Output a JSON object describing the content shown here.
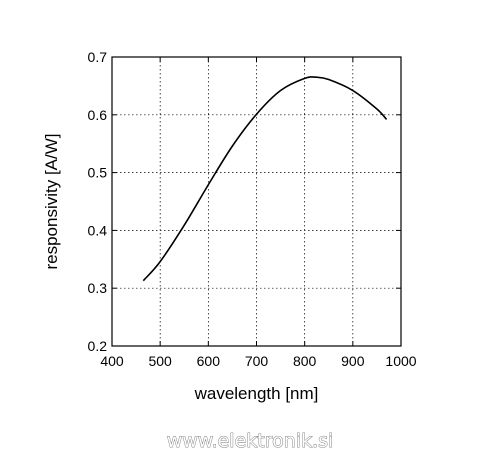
{
  "chart_data": {
    "type": "line",
    "title": "",
    "xlabel": "wavelength [nm]",
    "ylabel": "responsivity [A/W]",
    "xlim": [
      400,
      1000
    ],
    "ylim": [
      0.2,
      0.7
    ],
    "x_ticks": [
      "400",
      "500",
      "600",
      "700",
      "800",
      "900",
      "1000"
    ],
    "y_ticks": [
      "0.2",
      "0.3",
      "0.4",
      "0.5",
      "0.6",
      "0.7"
    ],
    "grid": true,
    "grid_style": "dotted",
    "line_color": "#000000",
    "series": [
      {
        "x": [
          465,
          500,
          550,
          600,
          650,
          700,
          750,
          800,
          825,
          850,
          900,
          950,
          970
        ],
        "values": [
          0.313,
          0.346,
          0.409,
          0.479,
          0.546,
          0.601,
          0.642,
          0.663,
          0.665,
          0.661,
          0.642,
          0.61,
          0.592
        ]
      }
    ]
  },
  "watermark": "www.elektronik.si"
}
